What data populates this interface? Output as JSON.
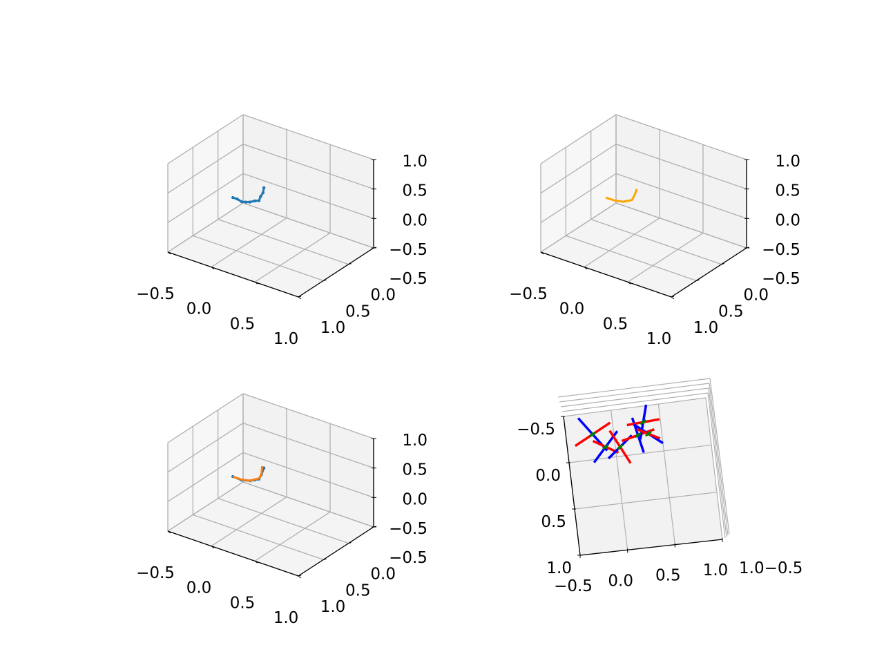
{
  "figure": {
    "background": "#ffffff",
    "pane_face": "#f2f2f2",
    "pane_edge": "#e6e6e6",
    "grid_color": "#b0b0b0"
  },
  "chart_data": [
    {
      "type": "line",
      "projection": "3d",
      "view": "default",
      "title": "",
      "xlim": [
        -0.5,
        1.0
      ],
      "ylim": [
        -0.5,
        1.0
      ],
      "zlim": [
        -0.5,
        1.0
      ],
      "x_ticks": [
        "−0.5",
        "0.0",
        "0.5",
        "1.0"
      ],
      "y_ticks": [
        "−0.5",
        "0.0",
        "0.5",
        "1.0"
      ],
      "z_ticks": [
        "−0.5",
        "0.0",
        "0.5",
        "1.0"
      ],
      "grid": true,
      "series": [
        {
          "color": "#1f77b4",
          "marker": "dot",
          "points": [
            [
              -0.3,
              0.05,
              0.0
            ],
            [
              -0.25,
              0.05,
              0.0
            ],
            [
              -0.2,
              0.05,
              -0.02
            ],
            [
              -0.15,
              0.05,
              0.0
            ],
            [
              -0.1,
              0.06,
              0.03
            ],
            [
              -0.05,
              0.05,
              0.07
            ],
            [
              0.0,
              0.05,
              0.1
            ],
            [
              0.0,
              0.02,
              0.15
            ],
            [
              0.0,
              -0.03,
              0.19
            ],
            [
              -0.03,
              -0.1,
              0.22
            ]
          ]
        }
      ]
    },
    {
      "type": "line",
      "projection": "3d",
      "view": "default",
      "title": "",
      "xlim": [
        -0.5,
        1.0
      ],
      "ylim": [
        -0.5,
        1.0
      ],
      "zlim": [
        -0.5,
        1.0
      ],
      "x_ticks": [
        "−0.5",
        "0.0",
        "0.5",
        "1.0"
      ],
      "y_ticks": [
        "−0.5",
        "0.0",
        "0.5",
        "1.0"
      ],
      "z_ticks": [
        "−0.5",
        "0.0",
        "0.5",
        "1.0"
      ],
      "grid": true,
      "series": [
        {
          "color": "#ffa500",
          "marker": "none",
          "points": [
            [
              -0.3,
              0.05,
              0.0
            ],
            [
              -0.2,
              0.05,
              0.0
            ],
            [
              -0.1,
              0.05,
              0.03
            ],
            [
              -0.05,
              0.05,
              0.07
            ],
            [
              0.0,
              0.05,
              0.11
            ],
            [
              0.0,
              0.0,
              0.16
            ],
            [
              -0.03,
              -0.1,
              0.2
            ]
          ]
        }
      ]
    },
    {
      "type": "line",
      "projection": "3d",
      "view": "default",
      "title": "",
      "xlim": [
        -0.5,
        1.0
      ],
      "ylim": [
        -0.5,
        1.0
      ],
      "zlim": [
        -0.5,
        1.0
      ],
      "x_ticks": [
        "−0.5",
        "0.0",
        "0.5",
        "1.0"
      ],
      "y_ticks": [
        "−0.5",
        "0.0",
        "0.5",
        "1.0"
      ],
      "z_ticks": [
        "−0.5",
        "0.0",
        "0.5",
        "1.0"
      ],
      "grid": true,
      "series": [
        {
          "color": "#1f77b4",
          "marker": "dot",
          "points": [
            [
              -0.3,
              0.05,
              0.0
            ],
            [
              -0.2,
              0.05,
              -0.01
            ],
            [
              -0.1,
              0.05,
              0.03
            ],
            [
              -0.05,
              0.05,
              0.07
            ],
            [
              0.0,
              0.05,
              0.11
            ],
            [
              0.0,
              0.0,
              0.16
            ],
            [
              -0.03,
              -0.1,
              0.2
            ]
          ]
        },
        {
          "color": "#ff7f0e",
          "marker": "none",
          "points": [
            [
              -0.3,
              0.05,
              0.0
            ],
            [
              -0.2,
              0.05,
              0.0
            ],
            [
              -0.1,
              0.05,
              0.03
            ],
            [
              -0.05,
              0.05,
              0.08
            ],
            [
              0.0,
              0.05,
              0.12
            ],
            [
              0.0,
              0.0,
              0.17
            ],
            [
              -0.05,
              -0.1,
              0.22
            ]
          ]
        }
      ]
    },
    {
      "type": "line",
      "projection": "3d",
      "view": "top-down",
      "title": "",
      "xlim": [
        -0.5,
        1.0
      ],
      "ylim": [
        -0.5,
        1.0
      ],
      "zlim": [
        -0.5,
        1.0
      ],
      "x_ticks": [
        "−0.5",
        "0.0",
        "0.5",
        "1.0"
      ],
      "y_ticks": [
        "−0.5",
        "0.0",
        "0.5",
        "1.0"
      ],
      "z_ticks_overlapping": "1.0−0.5",
      "grid": true,
      "frames": [
        {
          "origin": [
            -0.22,
            -0.27
          ],
          "x_dir": [
            -0.3,
            0.2
          ],
          "y_dir": [
            0.25,
            0.28
          ]
        },
        {
          "origin": [
            -0.1,
            -0.12
          ],
          "x_dir": [
            0.22,
            0.1
          ],
          "y_dir": [
            -0.2,
            0.27
          ]
        },
        {
          "origin": [
            0.05,
            -0.1
          ],
          "x_dir": [
            0.18,
            0.28
          ],
          "y_dir": [
            0.2,
            -0.2
          ]
        },
        {
          "origin": [
            0.25,
            -0.2
          ],
          "x_dir": [
            -0.28,
            0.1
          ],
          "y_dir": [
            0.1,
            0.3
          ]
        },
        {
          "origin": [
            0.32,
            -0.33
          ],
          "x_dir": [
            -0.28,
            0.05
          ],
          "y_dir": [
            0.05,
            -0.3
          ]
        },
        {
          "origin": [
            0.36,
            -0.2
          ],
          "x_dir": [
            0.2,
            0.08
          ],
          "y_dir": [
            0.25,
            0.16
          ]
        }
      ],
      "frame_colors": {
        "x_axis": "#ff0000",
        "y_axis": "#0000ff",
        "z_axis": "#008000"
      }
    }
  ]
}
